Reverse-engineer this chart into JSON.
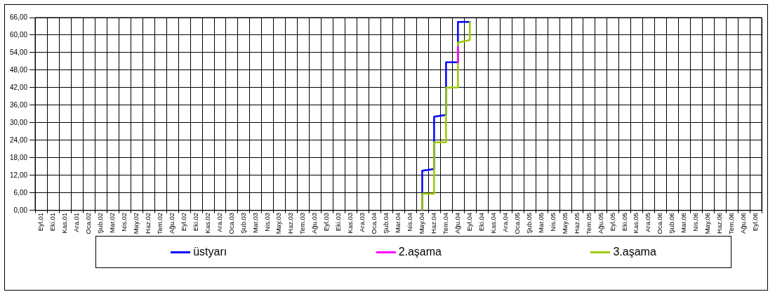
{
  "chart_data": {
    "type": "line",
    "categories": [
      "Eyl.01",
      "Eki.01",
      "Kas.01",
      "Ara.01",
      "Oca.02",
      "Şub.02",
      "Mar.02",
      "Nis.02",
      "May.02",
      "Haz.02",
      "Tem.02",
      "Ağu.02",
      "Eyl.02",
      "Eki.02",
      "Kas.02",
      "Ara.02",
      "Oca.03",
      "Şub.03",
      "Mar.03",
      "Nis.03",
      "May.03",
      "Haz.03",
      "Tem.03",
      "Ağu.03",
      "Eyl.03",
      "Eki.03",
      "Kas.03",
      "Ara.03",
      "Oca.04",
      "Şub.04",
      "Mar.04",
      "Nis.04",
      "May.04",
      "Haz.04",
      "Tem.04",
      "Ağu.04",
      "Eyl.04",
      "Eki.04",
      "Kas.04",
      "Ara.04",
      "Oca.05",
      "Şub.05",
      "Mar.05",
      "Nis.05",
      "May.05",
      "Haz.05",
      "Tem.05",
      "Ağu.05",
      "Eyl.05",
      "Eki.05",
      "Kas.05",
      "Ara.05",
      "Oca.06",
      "Şub.06",
      "Mar.06",
      "Nis.06",
      "May.06",
      "Haz.06",
      "Tem.06",
      "Ağu.06",
      "Eyl.06"
    ],
    "series": [
      {
        "name": "üstyarı",
        "color": "#0000ff",
        "x": [
          "May.04",
          "May.04",
          "Haz.04",
          "Haz.04",
          "Tem.04",
          "Tem.04",
          "Ağu.04",
          "Ağu.04",
          "Eyl.04"
        ],
        "values": [
          0,
          13.6,
          14.2,
          32.1,
          32.7,
          50.7,
          50.7,
          64.5,
          64.5
        ]
      },
      {
        "name": "2.aşama",
        "color": "#ff00ff",
        "x": [
          "Ağu.04",
          "Ağu.04"
        ],
        "values": [
          50.7,
          56.0
        ]
      },
      {
        "name": "3.aşama",
        "color": "#99cc00",
        "x": [
          "May.04",
          "May.04",
          "Haz.04",
          "Haz.04",
          "Tem.04",
          "Tem.04",
          "Ağu.04",
          "Ağu.04",
          "Eyl.04",
          "Eyl.04"
        ],
        "values": [
          0,
          5.7,
          5.7,
          23.3,
          23.3,
          42.0,
          42.1,
          57.4,
          58.3,
          64.5
        ]
      }
    ],
    "ylim": [
      0,
      66
    ],
    "yticks": [
      {
        "value": 0,
        "label": "0,00"
      },
      {
        "value": 6,
        "label": "6,00"
      },
      {
        "value": 12,
        "label": "12,00"
      },
      {
        "value": 18,
        "label": "18,00"
      },
      {
        "value": 24,
        "label": "24,00"
      },
      {
        "value": 30,
        "label": "30,00"
      },
      {
        "value": 36,
        "label": "36,00"
      },
      {
        "value": 42,
        "label": "42,00"
      },
      {
        "value": 48,
        "label": "48,00"
      },
      {
        "value": 54,
        "label": "54,00"
      },
      {
        "value": 60,
        "label": "60,00"
      },
      {
        "value": 66,
        "label": "66,00"
      }
    ],
    "grid": true,
    "legend": "bottom",
    "marker": "none",
    "line_style": "solid"
  }
}
